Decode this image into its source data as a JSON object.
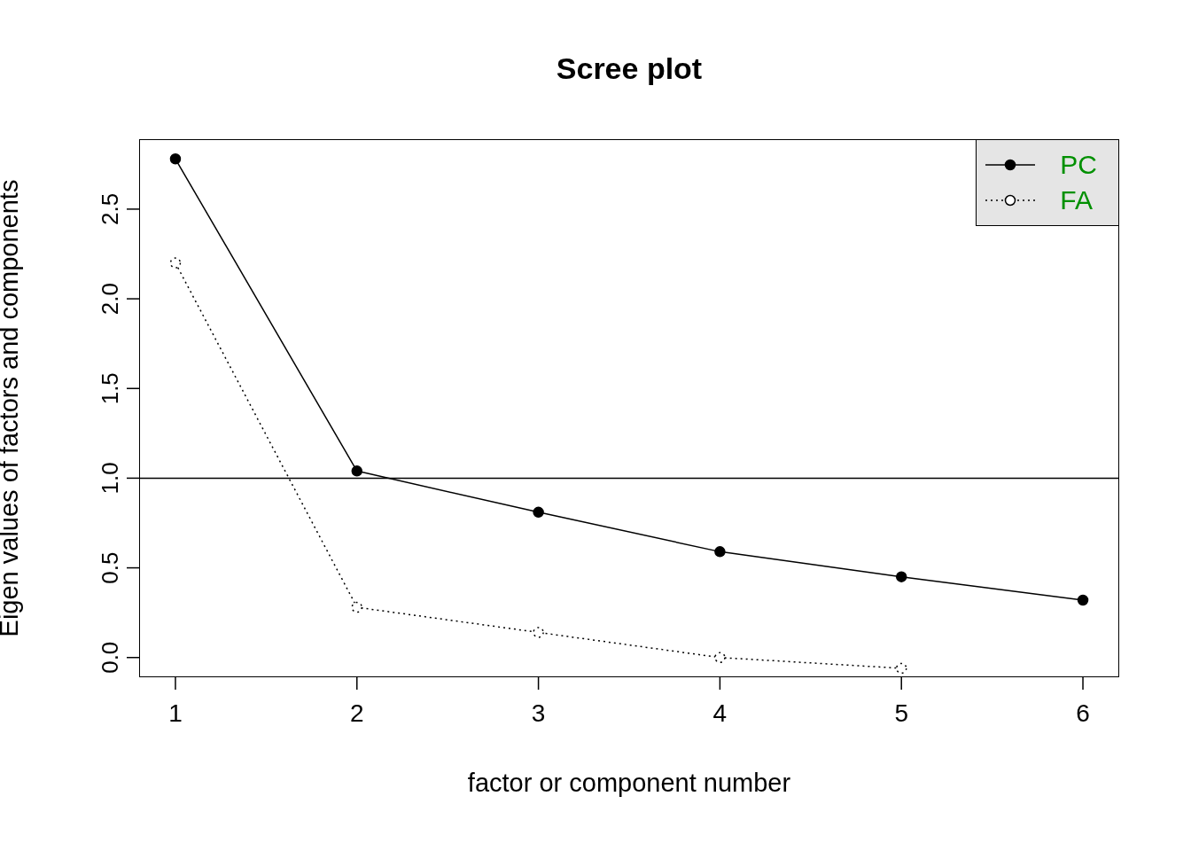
{
  "chart_data": {
    "type": "line",
    "title": "Scree plot",
    "xlabel": "factor or component number",
    "ylabel": "Eigen values of factors and components",
    "x": [
      1,
      2,
      3,
      4,
      5,
      6
    ],
    "series": [
      {
        "name": "PC",
        "color": "#000000",
        "values": [
          2.78,
          1.04,
          0.81,
          0.59,
          0.45,
          0.32
        ],
        "marker": "circle",
        "line_style": "solid"
      },
      {
        "name": "FA",
        "color": "#000000",
        "values": [
          2.2,
          0.28,
          0.14,
          0.0,
          -0.06,
          null
        ],
        "marker": "circle_open",
        "line_style": "dotted"
      }
    ],
    "xlim": [
      0.8,
      6.2
    ],
    "xticks": [
      1,
      2,
      3,
      4,
      5,
      6
    ],
    "ylim": [
      -0.11,
      2.89
    ],
    "yticks": [
      {
        "value": 0,
        "label": "0.0"
      },
      0.5,
      {
        "value": 1,
        "label": "1.0"
      },
      1.5,
      {
        "value": 2,
        "label": "2.0"
      },
      2.5
    ],
    "ref_lines": [
      {
        "axis": "y",
        "value": 1,
        "color": "#000000"
      }
    ],
    "legend": "top right"
  }
}
